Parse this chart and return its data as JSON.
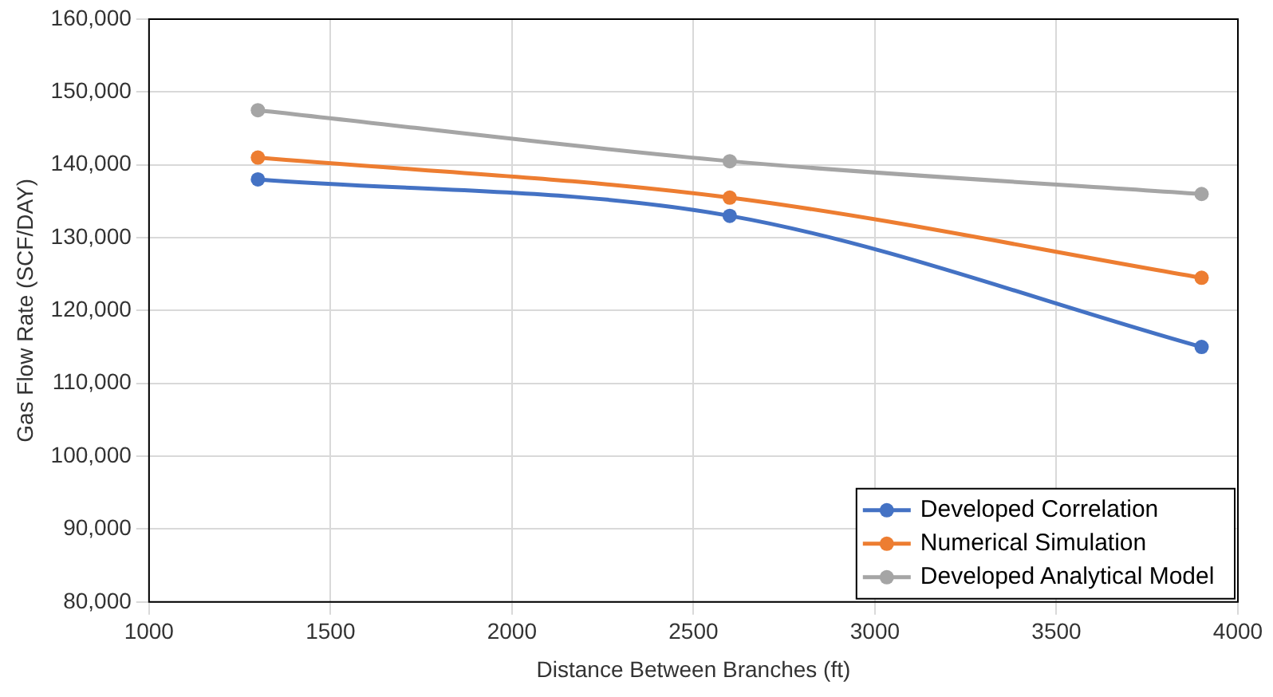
{
  "chart_data": {
    "type": "line",
    "xlabel": "Distance Between Branches (ft)",
    "ylabel": "Gas Flow Rate (SCF/DAY)",
    "x": [
      1300,
      2600,
      3900
    ],
    "series": [
      {
        "name": "Developed Correlation",
        "color": "#4472c4",
        "values": [
          138000,
          133000,
          115000
        ]
      },
      {
        "name": "Numerical Simulation",
        "color": "#ed7d31",
        "values": [
          141000,
          135500,
          124500
        ]
      },
      {
        "name": "Developed Analytical Model",
        "color": "#a5a5a5",
        "values": [
          147500,
          140500,
          136000
        ]
      }
    ],
    "xlim": [
      1000,
      4000
    ],
    "xticks": [
      1000,
      1500,
      2000,
      2500,
      3000,
      3500,
      4000
    ],
    "ylim": [
      80000,
      160000
    ],
    "yticks": [
      {
        "value": 80000,
        "label": "80,000"
      },
      {
        "value": 90000,
        "label": "90,000"
      },
      {
        "value": 100000,
        "label": "100,000"
      },
      {
        "value": 110000,
        "label": "110,000"
      },
      {
        "value": 120000,
        "label": "120,000"
      },
      {
        "value": 130000,
        "label": "130,000"
      },
      {
        "value": 140000,
        "label": "140,000"
      },
      {
        "value": 150000,
        "label": "150,000"
      },
      {
        "value": 160000,
        "label": "160,000"
      }
    ],
    "grid": true,
    "legend": "bottom right",
    "marker": "circle",
    "line_style": "solid"
  }
}
